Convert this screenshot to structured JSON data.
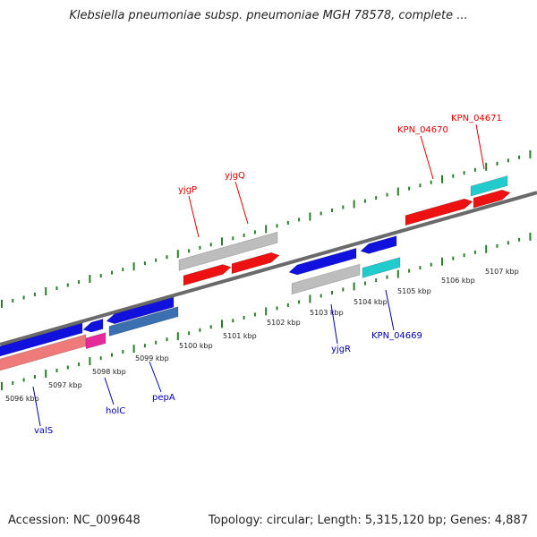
{
  "title": "Klebsiella pneumoniae subsp. pneumoniae MGH 78578, complete ...",
  "footer": {
    "accession": "Accession: NC_009648",
    "summary": "Topology: circular; Length: 5,315,120 bp; Genes: 4,887"
  },
  "colors": {
    "backbone": "#6a6a6a",
    "ticks": "#2a7d2a",
    "forward_gene": "#ee1111",
    "reverse_gene": "#1111dd",
    "teal_gene": "#22cccc",
    "grey_gene": "#bdbdbd",
    "pink_gene": "#ee7a7a",
    "magenta_gene": "#e62a9a",
    "steel_gene": "#3a6fb0",
    "label_forward": "#dd0000",
    "label_reverse": "#0000aa"
  },
  "tick_labels": [
    {
      "text": "5096 kbp",
      "kbp": 5096
    },
    {
      "text": "5097 kbp",
      "kbp": 5097
    },
    {
      "text": "5098 kbp",
      "kbp": 5098
    },
    {
      "text": "5099 kbp",
      "kbp": 5099
    },
    {
      "text": "5100 kbp",
      "kbp": 5100
    },
    {
      "text": "5101 kbp",
      "kbp": 5101
    },
    {
      "text": "5102 kbp",
      "kbp": 5102
    },
    {
      "text": "5103 kbp",
      "kbp": 5103
    },
    {
      "text": "5104 kbp",
      "kbp": 5104
    },
    {
      "text": "5105 kbp",
      "kbp": 5105
    },
    {
      "text": "5106 kbp",
      "kbp": 5106
    },
    {
      "text": "5107 kbp",
      "kbp": 5107
    }
  ],
  "gene_labels": [
    {
      "name": "yjgP",
      "strand": "forward"
    },
    {
      "name": "yjgQ",
      "strand": "forward"
    },
    {
      "name": "KPN_04670",
      "strand": "forward"
    },
    {
      "name": "KPN_04671",
      "strand": "forward"
    },
    {
      "name": "valS",
      "strand": "reverse"
    },
    {
      "name": "holC",
      "strand": "reverse"
    },
    {
      "name": "pepA",
      "strand": "reverse"
    },
    {
      "name": "yjgR",
      "strand": "reverse"
    },
    {
      "name": "KPN_04669",
      "strand": "reverse"
    }
  ]
}
